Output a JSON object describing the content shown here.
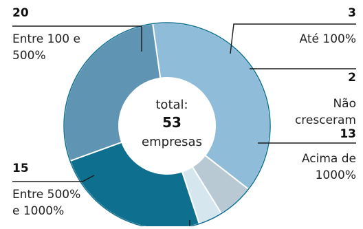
{
  "chart_data": {
    "type": "pie",
    "variant": "donut",
    "title": "",
    "categories": [
      "Entre 100 e 500%",
      "Até 100%",
      "Não cresceram",
      "Acima de 1000%",
      "Entre 500% e 1000%"
    ],
    "values": [
      20,
      3,
      2,
      13,
      15
    ],
    "colors": [
      "#8fbcd9",
      "#b9c9d4",
      "#d5e6ef",
      "#0f6f8f",
      "#5f95b2"
    ],
    "center_label": {
      "line1": "total:",
      "value": "53",
      "line2": "empresas"
    },
    "legend": "leader-line labels around the donut"
  },
  "labels": [
    {
      "value": "20",
      "line1": "Entre 100 e",
      "line2": "500%"
    },
    {
      "value": "3",
      "line1": "Até 100%"
    },
    {
      "value": "2",
      "line1": "Não",
      "line2": "cresceram"
    },
    {
      "value": "13",
      "line1": "Acima de",
      "line2": "1000%"
    },
    {
      "value": "15",
      "line1": "Entre 500%",
      "line2": "e 1000%"
    }
  ]
}
